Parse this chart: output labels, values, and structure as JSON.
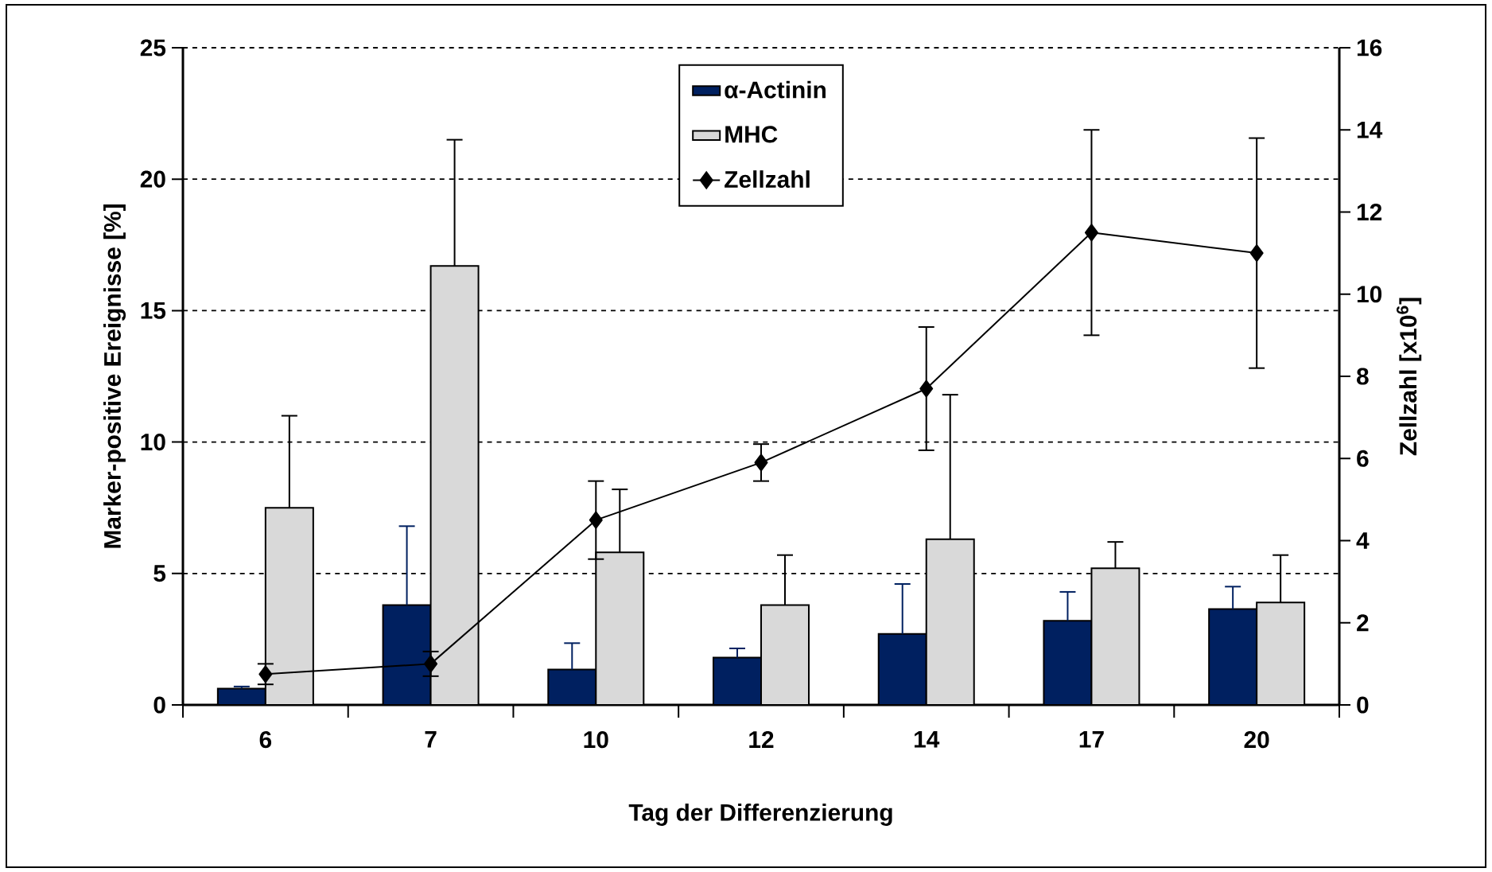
{
  "chart_data": {
    "type": "bar",
    "xlabel": "Tag der Differenzierung",
    "ylabel": "Marker-positive Ereignisse [%]",
    "y2label": "Zellzahl [x10$^{6}$]",
    "categories": [
      "6",
      "7",
      "10",
      "12",
      "14",
      "17",
      "20"
    ],
    "series": [
      {
        "name": "α-Actinin",
        "color": "#002060",
        "values": [
          0.62,
          3.8,
          1.35,
          1.8,
          2.7,
          3.2,
          3.65
        ],
        "errors": [
          [
            0.62,
            0.7
          ],
          [
            3.8,
            6.8
          ],
          [
            1.35,
            2.35
          ],
          [
            1.8,
            2.15
          ],
          [
            2.7,
            4.6
          ],
          [
            3.2,
            4.3
          ],
          [
            3.65,
            4.5
          ]
        ]
      },
      {
        "name": "MHC",
        "color": "#d9d9d9",
        "values": [
          7.5,
          16.7,
          5.8,
          3.8,
          6.3,
          5.2,
          3.9
        ],
        "errors": [
          [
            7.5,
            11
          ],
          [
            16.7,
            21.5
          ],
          [
            5.8,
            8.2
          ],
          [
            3.8,
            5.7
          ],
          [
            6.3,
            11.8
          ],
          [
            5.2,
            6.2
          ],
          [
            3.9,
            5.7
          ]
        ]
      },
      {
        "name": "Zellzahl",
        "type": "line",
        "axis": "y2",
        "color": "#000000",
        "marker": "diamond",
        "line_style": "solid",
        "values": [
          0.75,
          1.0,
          4.5,
          5.9,
          7.7,
          11.5,
          11.0
        ],
        "errors": [
          0.25,
          0.3,
          0.95,
          0.45,
          1.5,
          2.5,
          2.8
        ]
      }
    ],
    "ylim": [
      0,
      25
    ],
    "yticks": [
      0,
      5,
      10,
      15,
      20,
      25
    ],
    "y2lim": [
      0,
      16
    ],
    "y2ticks": [
      0,
      2,
      4,
      6,
      8,
      10,
      12,
      14,
      16
    ],
    "grid": "y",
    "legend": "top"
  }
}
